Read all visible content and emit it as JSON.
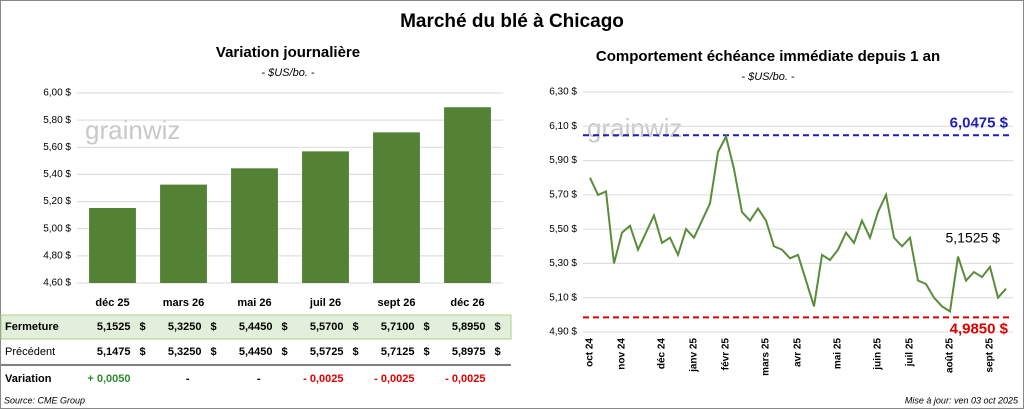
{
  "title": "Marché du blé à Chicago",
  "watermark": "grainwiz",
  "chart_data": [
    {
      "type": "bar",
      "title": "Variation journalière",
      "subtitle": "- $US/bo. -",
      "categories": [
        "déc 25",
        "mars 26",
        "mai 26",
        "juil 26",
        "sept 26",
        "déc 26"
      ],
      "values": [
        5.1525,
        5.325,
        5.445,
        5.57,
        5.71,
        5.895
      ],
      "color": "#548235",
      "ylim": [
        4.6,
        6.0
      ],
      "yticks": [
        {
          "value": 4.6,
          "label": "4,60 $"
        },
        {
          "value": 4.8,
          "label": "4,80 $"
        },
        {
          "value": 5.0,
          "label": "5,00 $"
        },
        {
          "value": 5.2,
          "label": "5,20 $"
        },
        {
          "value": 5.4,
          "label": "5,40 $"
        },
        {
          "value": 5.6,
          "label": "5,60 $"
        },
        {
          "value": 5.8,
          "label": "5,80 $"
        },
        {
          "value": 6.0,
          "label": "6,00 $"
        }
      ],
      "grid": true
    },
    {
      "type": "line",
      "title": "Comportement échéance immédiate depuis 1 an",
      "subtitle": "- $US/bo. -",
      "categories": [
        "oct 24",
        null,
        null,
        null,
        "nov 24",
        null,
        null,
        null,
        null,
        "déc 24",
        null,
        null,
        null,
        "janv 25",
        null,
        null,
        null,
        "févr 25",
        null,
        null,
        null,
        null,
        "mars 25",
        null,
        null,
        null,
        "avr 25",
        null,
        null,
        null,
        null,
        "mai 25",
        null,
        null,
        null,
        null,
        "juin 25",
        null,
        null,
        null,
        "juil 25",
        null,
        null,
        null,
        null,
        "août 25",
        null,
        null,
        null,
        null,
        "sept 25",
        null,
        null
      ],
      "series": [
        {
          "color": "#5b8c3a",
          "values": [
            5.8,
            5.7,
            5.72,
            5.3,
            5.48,
            5.52,
            5.38,
            5.48,
            5.58,
            5.42,
            5.45,
            5.35,
            5.5,
            5.45,
            5.55,
            5.65,
            5.95,
            6.04,
            5.85,
            5.6,
            5.55,
            5.62,
            5.55,
            5.4,
            5.38,
            5.33,
            5.35,
            5.2,
            5.05,
            5.35,
            5.32,
            5.38,
            5.48,
            5.42,
            5.55,
            5.45,
            5.6,
            5.7,
            5.45,
            5.4,
            5.45,
            5.2,
            5.18,
            5.1,
            5.05,
            5.02,
            5.34,
            5.2,
            5.25,
            5.22,
            5.28,
            5.1,
            5.1525
          ]
        }
      ],
      "ylim": [
        4.9,
        6.3
      ],
      "yticks": [
        {
          "value": 4.9,
          "label": "4,90 $"
        },
        {
          "value": 5.1,
          "label": "5,10 $"
        },
        {
          "value": 5.3,
          "label": "5,30 $"
        },
        {
          "value": 5.5,
          "label": "5,50 $"
        },
        {
          "value": 5.7,
          "label": "5,70 $"
        },
        {
          "value": 5.9,
          "label": "5,90 $"
        },
        {
          "value": 6.1,
          "label": "6,10 $"
        },
        {
          "value": 6.3,
          "label": "6,30 $"
        }
      ],
      "grid": true,
      "reference_lines": [
        {
          "value": 6.0475,
          "label": "6,0475 $",
          "color": "#1f1fb4"
        },
        {
          "value": 4.985,
          "label": "4,9850 $",
          "color": "#e00000"
        }
      ],
      "last_label": "5,1525 $"
    }
  ],
  "table": {
    "currency": "$",
    "rows": [
      {
        "label": "Fermeture",
        "cells": [
          "5,1525",
          "5,3250",
          "5,4450",
          "5,5700",
          "5,7100",
          "5,8950"
        ]
      },
      {
        "label": "Précédent",
        "cells": [
          "5,1475",
          "5,3250",
          "5,4450",
          "5,5725",
          "5,7125",
          "5,8975"
        ]
      },
      {
        "label": "Variation",
        "cells": [
          "+ 0,0050",
          "-",
          "-",
          "- 0,0025",
          "- 0,0025",
          "- 0,0025"
        ]
      }
    ]
  },
  "footer": {
    "source": "Source: CME Group",
    "updated": "Mise à jour: ven 03 oct 2025"
  }
}
